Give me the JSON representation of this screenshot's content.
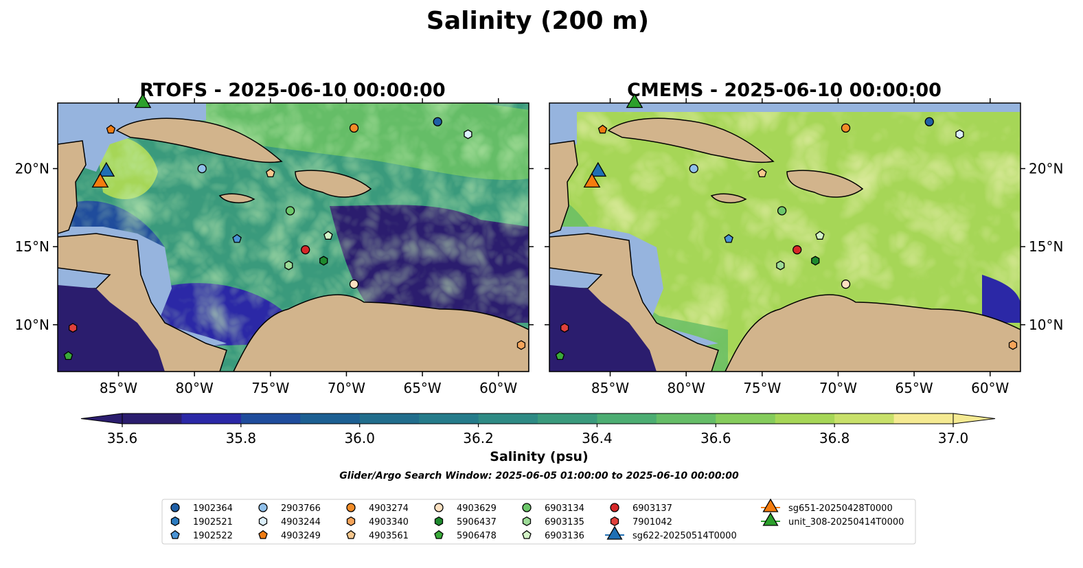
{
  "title": "Salinity (200 m)",
  "chart_data": [
    {
      "type": "heatmap",
      "title": "RTOFS - 2025-06-10 00:00:00",
      "xlim": [
        -89,
        -58
      ],
      "ylim": [
        7,
        24.2
      ],
      "xticks": [
        "85°W",
        "80°W",
        "75°W",
        "70°W",
        "65°W",
        "60°W"
      ],
      "yticks": [
        "10°N",
        "15°N",
        "20°N"
      ],
      "ytick_side": "left"
    },
    {
      "type": "heatmap",
      "title": "CMEMS - 2025-06-10 00:00:00",
      "xlim": [
        -89,
        -58
      ],
      "ylim": [
        7,
        24.2
      ],
      "xticks": [
        "85°W",
        "80°W",
        "75°W",
        "70°W",
        "65°W",
        "60°W"
      ],
      "yticks": [
        "10°N",
        "15°N",
        "20°N"
      ],
      "ytick_side": "right"
    }
  ],
  "colorbar": {
    "label": "Salinity (psu)",
    "min": 35.5,
    "max": 37.0,
    "step": 0.1,
    "extend": "both",
    "ticks": [
      "35.6",
      "35.8",
      "36.0",
      "36.2",
      "36.4",
      "36.6",
      "36.8",
      "37.0"
    ],
    "colors": [
      "#2b1d6e",
      "#2b28a6",
      "#1f4c9c",
      "#1c5f92",
      "#216d8c",
      "#257b8a",
      "#2e8a84",
      "#3a9a7c",
      "#4cad72",
      "#65bd67",
      "#85cc5c",
      "#a6d657",
      "#c8e06a",
      "#f5ea92"
    ]
  },
  "search_window": "Glider/Argo Search Window: 2025-06-05 01:00:00 to 2025-06-10 00:00:00",
  "markers": [
    {
      "id": "1902364",
      "shape": "circle",
      "color": "#1f5fa6",
      "lon": -64,
      "lat": 23
    },
    {
      "id": "1902521",
      "shape": "hexagon",
      "color": "#2b7bc0",
      "lon": null,
      "lat": null
    },
    {
      "id": "1902522",
      "shape": "pentagon",
      "color": "#4a93d4",
      "lon": -77.2,
      "lat": 15.5
    },
    {
      "id": "2903766",
      "shape": "circle",
      "color": "#90c0ea",
      "lon": -79.5,
      "lat": 20
    },
    {
      "id": "4903244",
      "shape": "hexagon",
      "color": "#dceffb",
      "lon": -62,
      "lat": 22.2
    },
    {
      "id": "4903249",
      "shape": "pentagon",
      "color": "#f07c12",
      "lon": -85.5,
      "lat": 22.5
    },
    {
      "id": "4903274",
      "shape": "circle",
      "color": "#f28c28",
      "lon": -69.5,
      "lat": 22.6
    },
    {
      "id": "4903340",
      "shape": "hexagon",
      "color": "#f5a45a",
      "lon": -58.5,
      "lat": 8.7
    },
    {
      "id": "4903561",
      "shape": "pentagon",
      "color": "#f8c88e",
      "lon": -75,
      "lat": 19.7
    },
    {
      "id": "4903629",
      "shape": "circle",
      "color": "#fde0c0",
      "lon": -69.5,
      "lat": 12.6
    },
    {
      "id": "5906437",
      "shape": "hexagon",
      "color": "#1e8a2e",
      "lon": -71.5,
      "lat": 14.1
    },
    {
      "id": "5906478",
      "shape": "pentagon",
      "color": "#3aaa3a",
      "lon": -88.3,
      "lat": 8
    },
    {
      "id": "6903134",
      "shape": "circle",
      "color": "#6cc76a",
      "lon": -73.7,
      "lat": 17.3
    },
    {
      "id": "6903135",
      "shape": "hexagon",
      "color": "#9ddb97",
      "lon": -73.8,
      "lat": 13.8
    },
    {
      "id": "6903136",
      "shape": "pentagon",
      "color": "#d4f4c8",
      "lon": -71.2,
      "lat": 15.7
    },
    {
      "id": "6903137",
      "shape": "circle",
      "color": "#d62728",
      "lon": -72.7,
      "lat": 14.8
    },
    {
      "id": "7901042",
      "shape": "hexagon",
      "color": "#e0413c",
      "lon": -88,
      "lat": 9.8
    }
  ],
  "gliders": [
    {
      "id": "sg622-20250514T0000",
      "color": "#1f6fb4",
      "lon": -85.8,
      "lat": 19.8
    },
    {
      "id": "sg651-20250428T0000",
      "color": "#f57c0e",
      "lon": -86.2,
      "lat": 19.1
    },
    {
      "id": "unit_308-20250414T0000",
      "color": "#2ca02c",
      "lon": -83.4,
      "lat": 24.2
    }
  ]
}
